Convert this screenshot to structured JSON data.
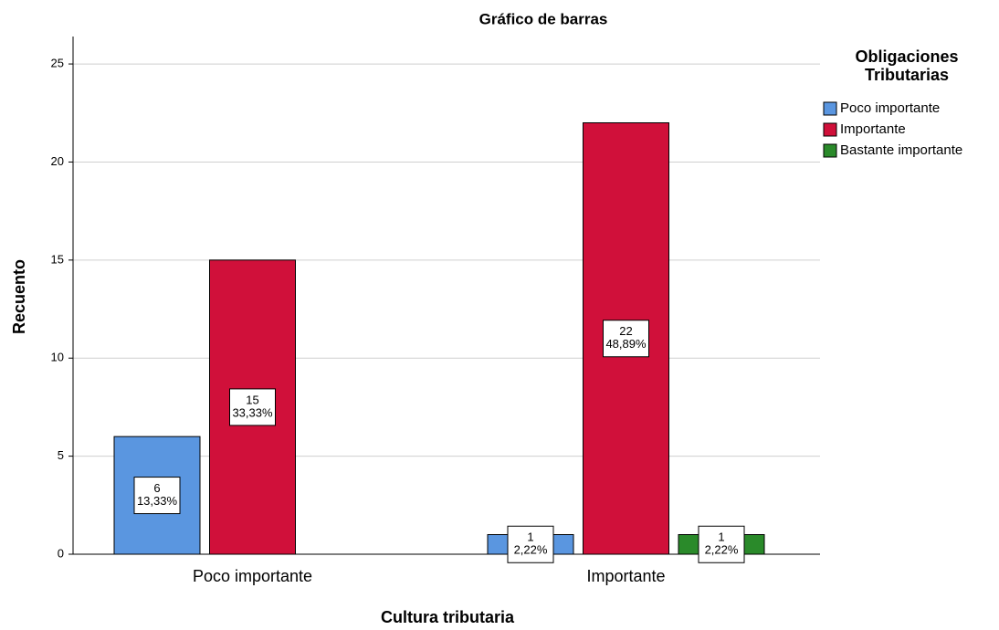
{
  "chart_data": {
    "type": "bar",
    "title": "Gráfico de barras",
    "x_label": "Cultura tributaria",
    "y_label": "Recuento",
    "legend_title": "Obligaciones Tributarias",
    "legend_position": "right",
    "grid": true,
    "categories": [
      "Poco importante",
      "Importante"
    ],
    "ylim": [
      0,
      26.4
    ],
    "yticks": [
      0,
      5,
      10,
      15,
      20,
      25
    ],
    "series": [
      {
        "name": "Poco importante",
        "color": "#5a96e0",
        "values": [
          6,
          1
        ],
        "percents": [
          13.33,
          2.22
        ],
        "percent_labels": [
          "13,33%",
          "2,22%"
        ]
      },
      {
        "name": "Importante",
        "color": "#d0103a",
        "values": [
          15,
          22
        ],
        "percents": [
          33.33,
          48.89
        ],
        "percent_labels": [
          "33,33%",
          "48,89%"
        ]
      },
      {
        "name": "Bastante importante",
        "color": "#2a8a2a",
        "values": [
          null,
          1
        ],
        "percents": [
          null,
          2.22
        ],
        "percent_labels": [
          null,
          "2,22%"
        ]
      }
    ]
  }
}
